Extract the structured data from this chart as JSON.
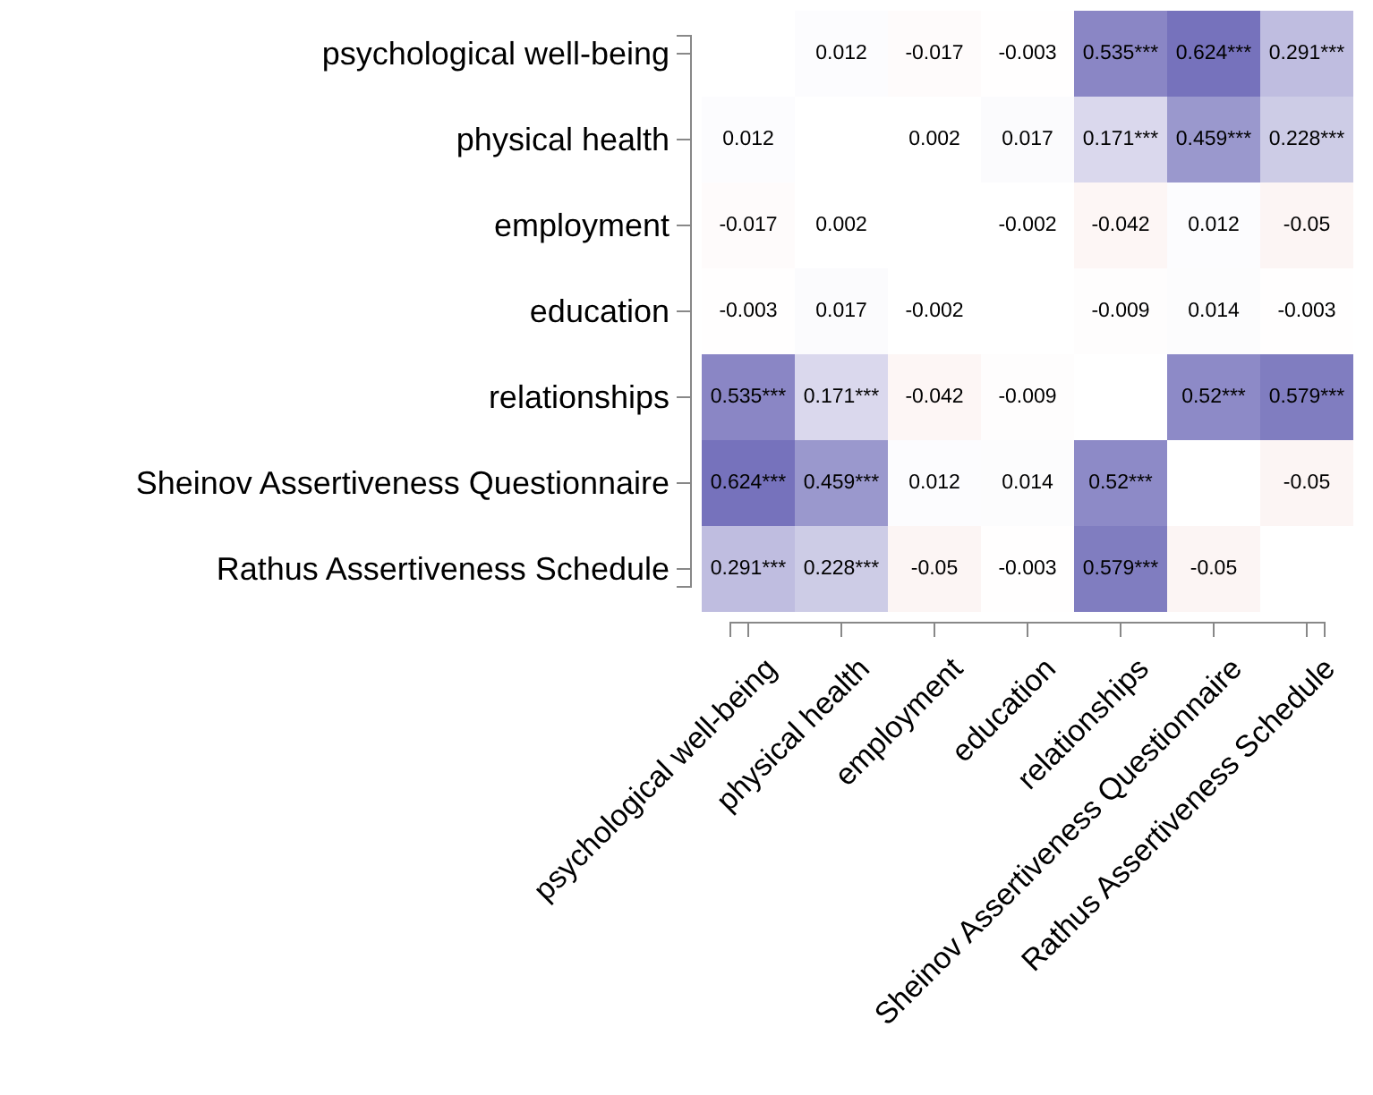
{
  "chart_data": {
    "type": "heatmap",
    "categories": [
      "psychological well-being",
      "physical health",
      "employment",
      "education",
      "relationships",
      "Sheinov Assertiveness Questionnaire",
      "Rathus Assertiveness Schedule"
    ],
    "y_categories": [
      "psychological well-being",
      "physical health",
      "employment",
      "education",
      "relationships",
      "Sheinov Assertiveness Questionnaire",
      "Rathus Assertiveness Schedule"
    ],
    "cells": [
      [
        null,
        0.012,
        -0.017,
        -0.003,
        0.535,
        0.624,
        0.291
      ],
      [
        0.012,
        null,
        0.002,
        0.017,
        0.171,
        0.459,
        0.228
      ],
      [
        -0.017,
        0.002,
        null,
        -0.002,
        -0.042,
        0.012,
        -0.05
      ],
      [
        -0.003,
        0.017,
        -0.002,
        null,
        -0.009,
        0.014,
        -0.003
      ],
      [
        0.535,
        0.171,
        -0.042,
        -0.009,
        null,
        0.52,
        0.579
      ],
      [
        0.624,
        0.459,
        0.012,
        0.014,
        0.52,
        null,
        -0.05
      ],
      [
        0.291,
        0.228,
        -0.05,
        -0.003,
        0.579,
        -0.05,
        null
      ]
    ],
    "cell_labels": [
      [
        null,
        "0.012",
        "-0.017",
        "-0.003",
        "0.535***",
        "0.624***",
        "0.291***"
      ],
      [
        "0.012",
        null,
        "0.002",
        "0.017",
        "0.171***",
        "0.459***",
        "0.228***"
      ],
      [
        "-0.017",
        "0.002",
        null,
        "-0.002",
        "-0.042",
        "0.012",
        "-0.05"
      ],
      [
        "-0.003",
        "0.017",
        "-0.002",
        null,
        "-0.009",
        "0.014",
        "-0.003"
      ],
      [
        "0.535***",
        "0.171***",
        "-0.042",
        "-0.009",
        null,
        "0.52***",
        "0.579***"
      ],
      [
        "0.624***",
        "0.459***",
        "0.012",
        "0.014",
        "0.52***",
        null,
        "-0.05"
      ],
      [
        "0.291***",
        "0.228***",
        "-0.05",
        "-0.003",
        "0.579***",
        "-0.05",
        null
      ]
    ]
  }
}
